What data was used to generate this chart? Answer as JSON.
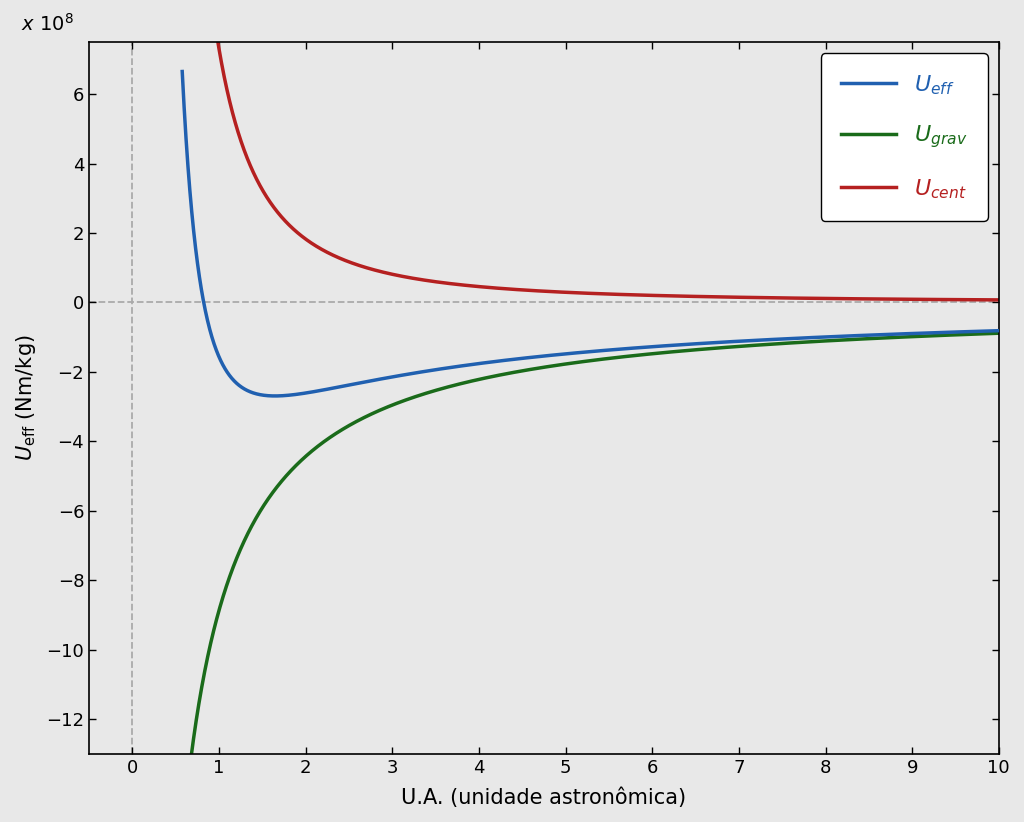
{
  "xlabel": "U.A. (unidade astronômica)",
  "ylabel": "$U_{\\mathrm{eff}}$ (Nm/kg)",
  "xlim": [
    -0.5,
    10.0
  ],
  "ylim": [
    -13.0,
    7.5
  ],
  "yticks": [
    -12,
    -10,
    -8,
    -6,
    -4,
    -2,
    0,
    2,
    4,
    6
  ],
  "xticks": [
    0,
    1,
    2,
    3,
    4,
    5,
    6,
    7,
    8,
    9,
    10
  ],
  "color_eff": "#2060b0",
  "color_grav": "#1a6b1a",
  "color_cent": "#b52020",
  "color_bg": "#e8e8e8",
  "color_dash": "#aaaaaa",
  "GM_scaled": 8.87,
  "L2_scaled": 3.98,
  "r_grav_start": 0.58,
  "r_cent_start": 0.4,
  "r_eff_start": 0.58,
  "r_end": 10.0,
  "linewidth": 2.5,
  "scale": 100000000.0
}
